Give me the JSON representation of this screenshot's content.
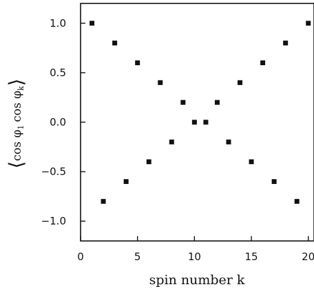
{
  "chart_data": {
    "type": "scatter",
    "xlabel": "spin number k",
    "ylabel": "⟨cos φ₁ cos φₖ⟩",
    "ylabel_parts": {
      "open_bracket": "⟨",
      "cos1": "cos φ",
      "sub1": "1",
      "cos2": "cos φ",
      "sub2": "k",
      "close_bracket": "⟩"
    },
    "xlim": [
      0,
      20.5
    ],
    "ylim": [
      -1.2,
      1.2
    ],
    "xticks": [
      0,
      5,
      10,
      15,
      20
    ],
    "xtick_labels": [
      "0",
      "5",
      "10",
      "15",
      "20"
    ],
    "yticks": [
      1.0,
      0.5,
      0.0,
      -0.5,
      -1.0
    ],
    "ytick_labels": [
      "1.0",
      "0.5",
      "0.0",
      "−0.5",
      "−1.0"
    ],
    "grid": false,
    "points": [
      {
        "x": 1,
        "y": 1.0
      },
      {
        "x": 2,
        "y": -0.8
      },
      {
        "x": 3,
        "y": 0.8
      },
      {
        "x": 4,
        "y": -0.6
      },
      {
        "x": 5,
        "y": 0.6
      },
      {
        "x": 6,
        "y": -0.4
      },
      {
        "x": 7,
        "y": 0.4
      },
      {
        "x": 8,
        "y": -0.2
      },
      {
        "x": 9,
        "y": 0.2
      },
      {
        "x": 10,
        "y": 0.0
      },
      {
        "x": 11,
        "y": 0.0
      },
      {
        "x": 12,
        "y": 0.2
      },
      {
        "x": 13,
        "y": -0.2
      },
      {
        "x": 14,
        "y": 0.4
      },
      {
        "x": 15,
        "y": -0.4
      },
      {
        "x": 16,
        "y": 0.6
      },
      {
        "x": 17,
        "y": -0.6
      },
      {
        "x": 18,
        "y": 0.8
      },
      {
        "x": 19,
        "y": -0.8
      },
      {
        "x": 20,
        "y": 1.0
      }
    ],
    "marker_color": "#111111"
  }
}
